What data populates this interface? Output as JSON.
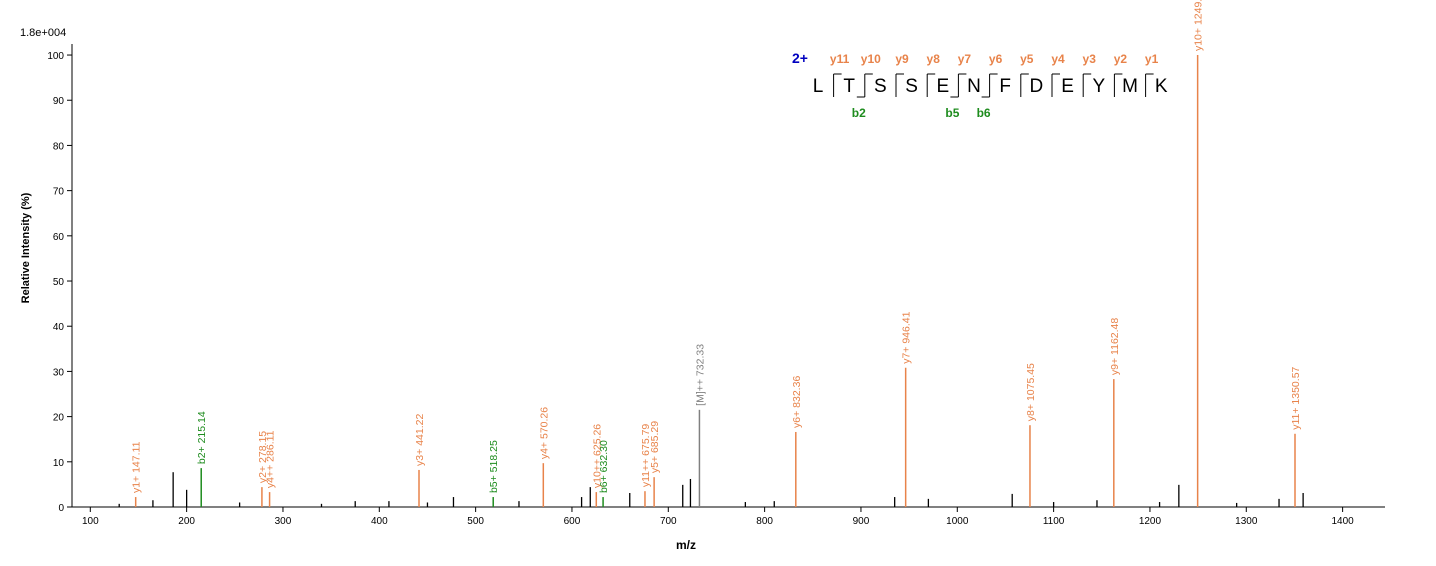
{
  "chart_data": {
    "type": "stem",
    "max_intensity_label": "1.8e+004",
    "y_label": "Relative   Intensity (%)",
    "x_label": "m/z",
    "xlim": [
      81,
      1444
    ],
    "ylim": [
      0,
      102
    ],
    "xticks": [
      100,
      200,
      300,
      400,
      500,
      600,
      700,
      800,
      900,
      1000,
      1100,
      1200,
      1300,
      1400
    ],
    "yticks": [
      0,
      10,
      20,
      30,
      40,
      50,
      60,
      70,
      80,
      90,
      100
    ],
    "annotated_peaks": {
      "x": [
        147.11,
        215.14,
        278.15,
        286.11,
        441.22,
        518.25,
        570.26,
        625.26,
        632.3,
        675.79,
        685.29,
        732.33,
        832.36,
        946.41,
        1075.45,
        1162.48,
        1249.51,
        1350.57
      ],
      "values": [
        2.2,
        8.6,
        4.4,
        3.3,
        8.2,
        2.2,
        9.7,
        3.3,
        2.2,
        3.5,
        6.6,
        21.5,
        16.6,
        30.8,
        18.1,
        28.3,
        100,
        16.2
      ],
      "labels": [
        "y1+ 147.11",
        "b2+ 215.14",
        "y2+ 278.15",
        "y4++ 286.11",
        "y3+ 441.22",
        "b5+ 518.25",
        "y4+ 570.26",
        "y10++ 625.26",
        "b6+ 632.30",
        "y11++ 675.79",
        "y5+ 685.29",
        "[M]++ 732.33",
        "y6+ 832.36",
        "y7+ 946.41",
        "y8+ 1075.45",
        "y9+ 1162.48",
        "y10+ 1249.51",
        "y11+ 1350.57"
      ],
      "colors": [
        "#e8834a",
        "#1e8c1e",
        "#e8834a",
        "#e8834a",
        "#e8834a",
        "#1e8c1e",
        "#e8834a",
        "#e8834a",
        "#1e8c1e",
        "#e8834a",
        "#e8834a",
        "#808080",
        "#e8834a",
        "#e8834a",
        "#e8834a",
        "#e8834a",
        "#e8834a",
        "#e8834a"
      ]
    },
    "peaks": {
      "color": "#000000",
      "x": [
        130,
        165,
        186,
        200,
        255,
        340,
        375,
        410,
        450,
        477,
        545,
        610,
        619,
        660,
        715,
        723,
        780,
        810,
        935,
        970,
        1057,
        1100,
        1145,
        1210,
        1230,
        1290,
        1334,
        1359
      ],
      "values": [
        0.7,
        1.5,
        7.7,
        3.8,
        1.0,
        0.7,
        1.3,
        1.3,
        1.0,
        2.2,
        1.3,
        2.2,
        4.4,
        3.1,
        4.9,
        6.2,
        1.1,
        1.3,
        2.2,
        1.8,
        2.9,
        1.1,
        1.5,
        1.1,
        4.9,
        0.9,
        1.8,
        3.1
      ]
    },
    "peptide": {
      "charge": "2+",
      "residues": [
        "L",
        "T",
        "S",
        "S",
        "E",
        "N",
        "F",
        "D",
        "E",
        "Y",
        "M",
        "K"
      ],
      "y_ions": [
        "y11",
        "y10",
        "y9",
        "y8",
        "y7",
        "y6",
        "y5",
        "y4",
        "y3",
        "y2",
        "y1"
      ],
      "b_ions": [
        null,
        "b2",
        null,
        null,
        "b5",
        "b6",
        null,
        null,
        null,
        null,
        null
      ],
      "y_color": "#e8834a",
      "b_color": "#1e8c1e",
      "charge_color": "#0000c0"
    }
  }
}
